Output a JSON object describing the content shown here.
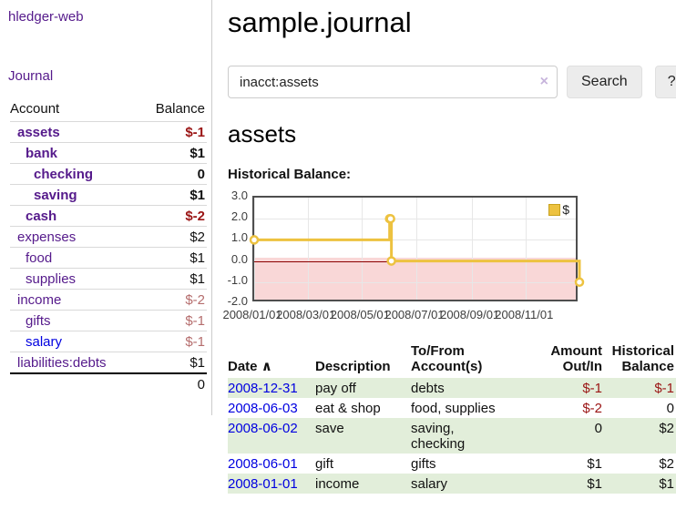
{
  "app": {
    "title": "hledger-web"
  },
  "nav": {
    "journal_label": "Journal"
  },
  "sidebar": {
    "header": {
      "account": "Account",
      "balance": "Balance"
    },
    "accounts": [
      {
        "name": "assets",
        "balance": "$-1"
      },
      {
        "name": "bank",
        "balance": "$1"
      },
      {
        "name": "checking",
        "balance": "0"
      },
      {
        "name": "saving",
        "balance": "$1"
      },
      {
        "name": "cash",
        "balance": "$-2"
      },
      {
        "name": "expenses",
        "balance": "$2"
      },
      {
        "name": "food",
        "balance": "$1"
      },
      {
        "name": "supplies",
        "balance": "$1"
      },
      {
        "name": "income",
        "balance": "$-2"
      },
      {
        "name": "gifts",
        "balance": "$-1"
      },
      {
        "name": "salary",
        "balance": "$-1"
      },
      {
        "name": "liabilities:debts",
        "balance": "$1"
      }
    ],
    "total": "0"
  },
  "main": {
    "title": "sample.journal",
    "search": {
      "value": "inacct:assets",
      "clear": "×",
      "button": "Search",
      "help": "?"
    },
    "account_heading": "assets",
    "chart_label": "Historical Balance:"
  },
  "chart_data": {
    "type": "line",
    "style": "step-after with point markers",
    "title": "Historical Balance",
    "legend": [
      "$"
    ],
    "legend_position": "top-right",
    "series": [
      {
        "name": "$",
        "points": [
          [
            "2008-01-01",
            1
          ],
          [
            "2008-06-01",
            2
          ],
          [
            "2008-06-02",
            2
          ],
          [
            "2008-06-03",
            0
          ],
          [
            "2008-12-31",
            -1
          ]
        ]
      }
    ],
    "x_range": [
      "2008-01-01",
      "2008-12-31"
    ],
    "ylim": [
      -2.0,
      3.0
    ],
    "yticks": [
      "3.0",
      "2.0",
      "1.0",
      "0.0",
      "-1.0",
      "-2.0"
    ],
    "xticks": [
      "2008/01/01",
      "2008/03/01",
      "2008/05/01",
      "2008/07/01",
      "2008/09/01",
      "2008/11/01"
    ],
    "grid": true,
    "zero_line_color": "#8b0000",
    "line_color": "#edc240",
    "negative_region_color": "#f9d7d7"
  },
  "register": {
    "headers": {
      "date": "Date",
      "sort_icon": "∧",
      "description": "Description",
      "accounts": "To/From\nAccount(s)",
      "amount": "Amount\nOut/In",
      "balance": "Historical\nBalance"
    },
    "rows": [
      {
        "date": "2008-12-31",
        "description": "pay off",
        "accounts": "debts",
        "amount": "$-1",
        "balance": "$-1"
      },
      {
        "date": "2008-06-03",
        "description": "eat & shop",
        "accounts": "food, supplies",
        "amount": "$-2",
        "balance": "0"
      },
      {
        "date": "2008-06-02",
        "description": "save",
        "accounts": "saving,\nchecking",
        "amount": "0",
        "balance": "$2"
      },
      {
        "date": "2008-06-01",
        "description": "gift",
        "accounts": "gifts",
        "amount": "$1",
        "balance": "$2"
      },
      {
        "date": "2008-01-01",
        "description": "income",
        "accounts": "salary",
        "amount": "$1",
        "balance": "$1"
      }
    ]
  }
}
